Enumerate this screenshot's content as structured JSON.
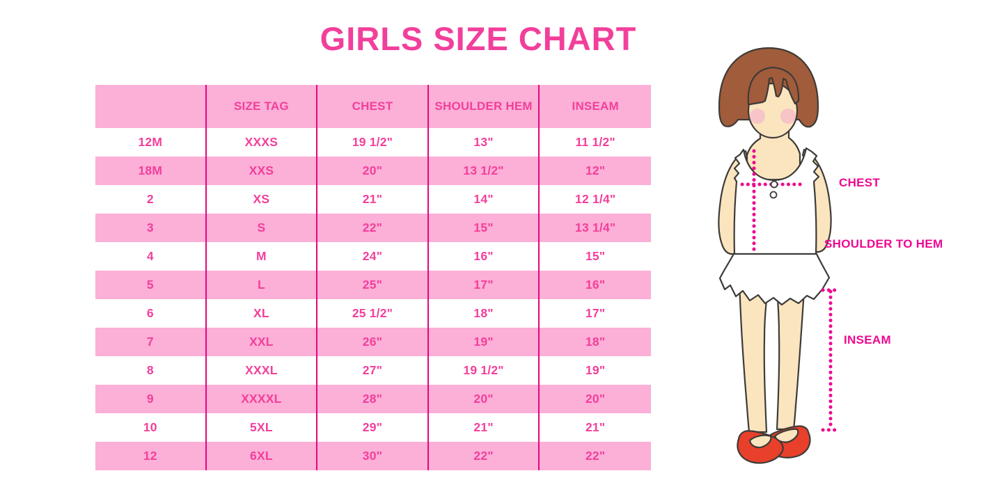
{
  "title": "GIRLS SIZE CHART",
  "chart_data": {
    "type": "table",
    "title": "GIRLS SIZE CHART",
    "columns": [
      "",
      "SIZE TAG",
      "CHEST",
      "SHOULDER HEM",
      "INSEAM"
    ],
    "rows": [
      [
        "12M",
        "XXXS",
        "19 1/2\"",
        "13\"",
        "11 1/2\""
      ],
      [
        "18M",
        "XXS",
        "20\"",
        "13 1/2\"",
        "12\""
      ],
      [
        "2",
        "XS",
        "21\"",
        "14\"",
        "12 1/4\""
      ],
      [
        "3",
        "S",
        "22\"",
        "15\"",
        "13 1/4\""
      ],
      [
        "4",
        "M",
        "24\"",
        "16\"",
        "15\""
      ],
      [
        "5",
        "L",
        "25\"",
        "17\"",
        "16\""
      ],
      [
        "6",
        "XL",
        "25 1/2\"",
        "18\"",
        "17\""
      ],
      [
        "7",
        "XXL",
        "26\"",
        "19\"",
        "18\""
      ],
      [
        "8",
        "XXXL",
        "27\"",
        "19 1/2\"",
        "19\""
      ],
      [
        "9",
        "XXXXL",
        "28\"",
        "20\"",
        "20\""
      ],
      [
        "10",
        "5XL",
        "29\"",
        "21\"",
        "21\""
      ],
      [
        "12",
        "6XL",
        "30\"",
        "22\"",
        "22\""
      ]
    ],
    "layout": {
      "zebra_striping": "header and every even row pink, others white",
      "column_separators": "magenta vertical lines between all columns",
      "horizontal_gridlines": false
    }
  },
  "diagram": {
    "description": "illustration of a girl used to show measurement points",
    "labels": {
      "chest": "CHEST",
      "shoulder_to_hem": "SHOULDER TO HEM",
      "inseam": "INSEAM"
    }
  },
  "colors": {
    "accent_pink": "#F23F9B",
    "band_pink": "#FCAFD7",
    "separator_magenta": "#E5057E",
    "label_magenta": "#EE0890",
    "outline": "#3D3B38",
    "hair_brown": "#A15C3B",
    "skin": "#FBE5BF",
    "cheek": "#F5B8C9",
    "shoe_red": "#E8402B",
    "background": "#FFFFFF"
  }
}
